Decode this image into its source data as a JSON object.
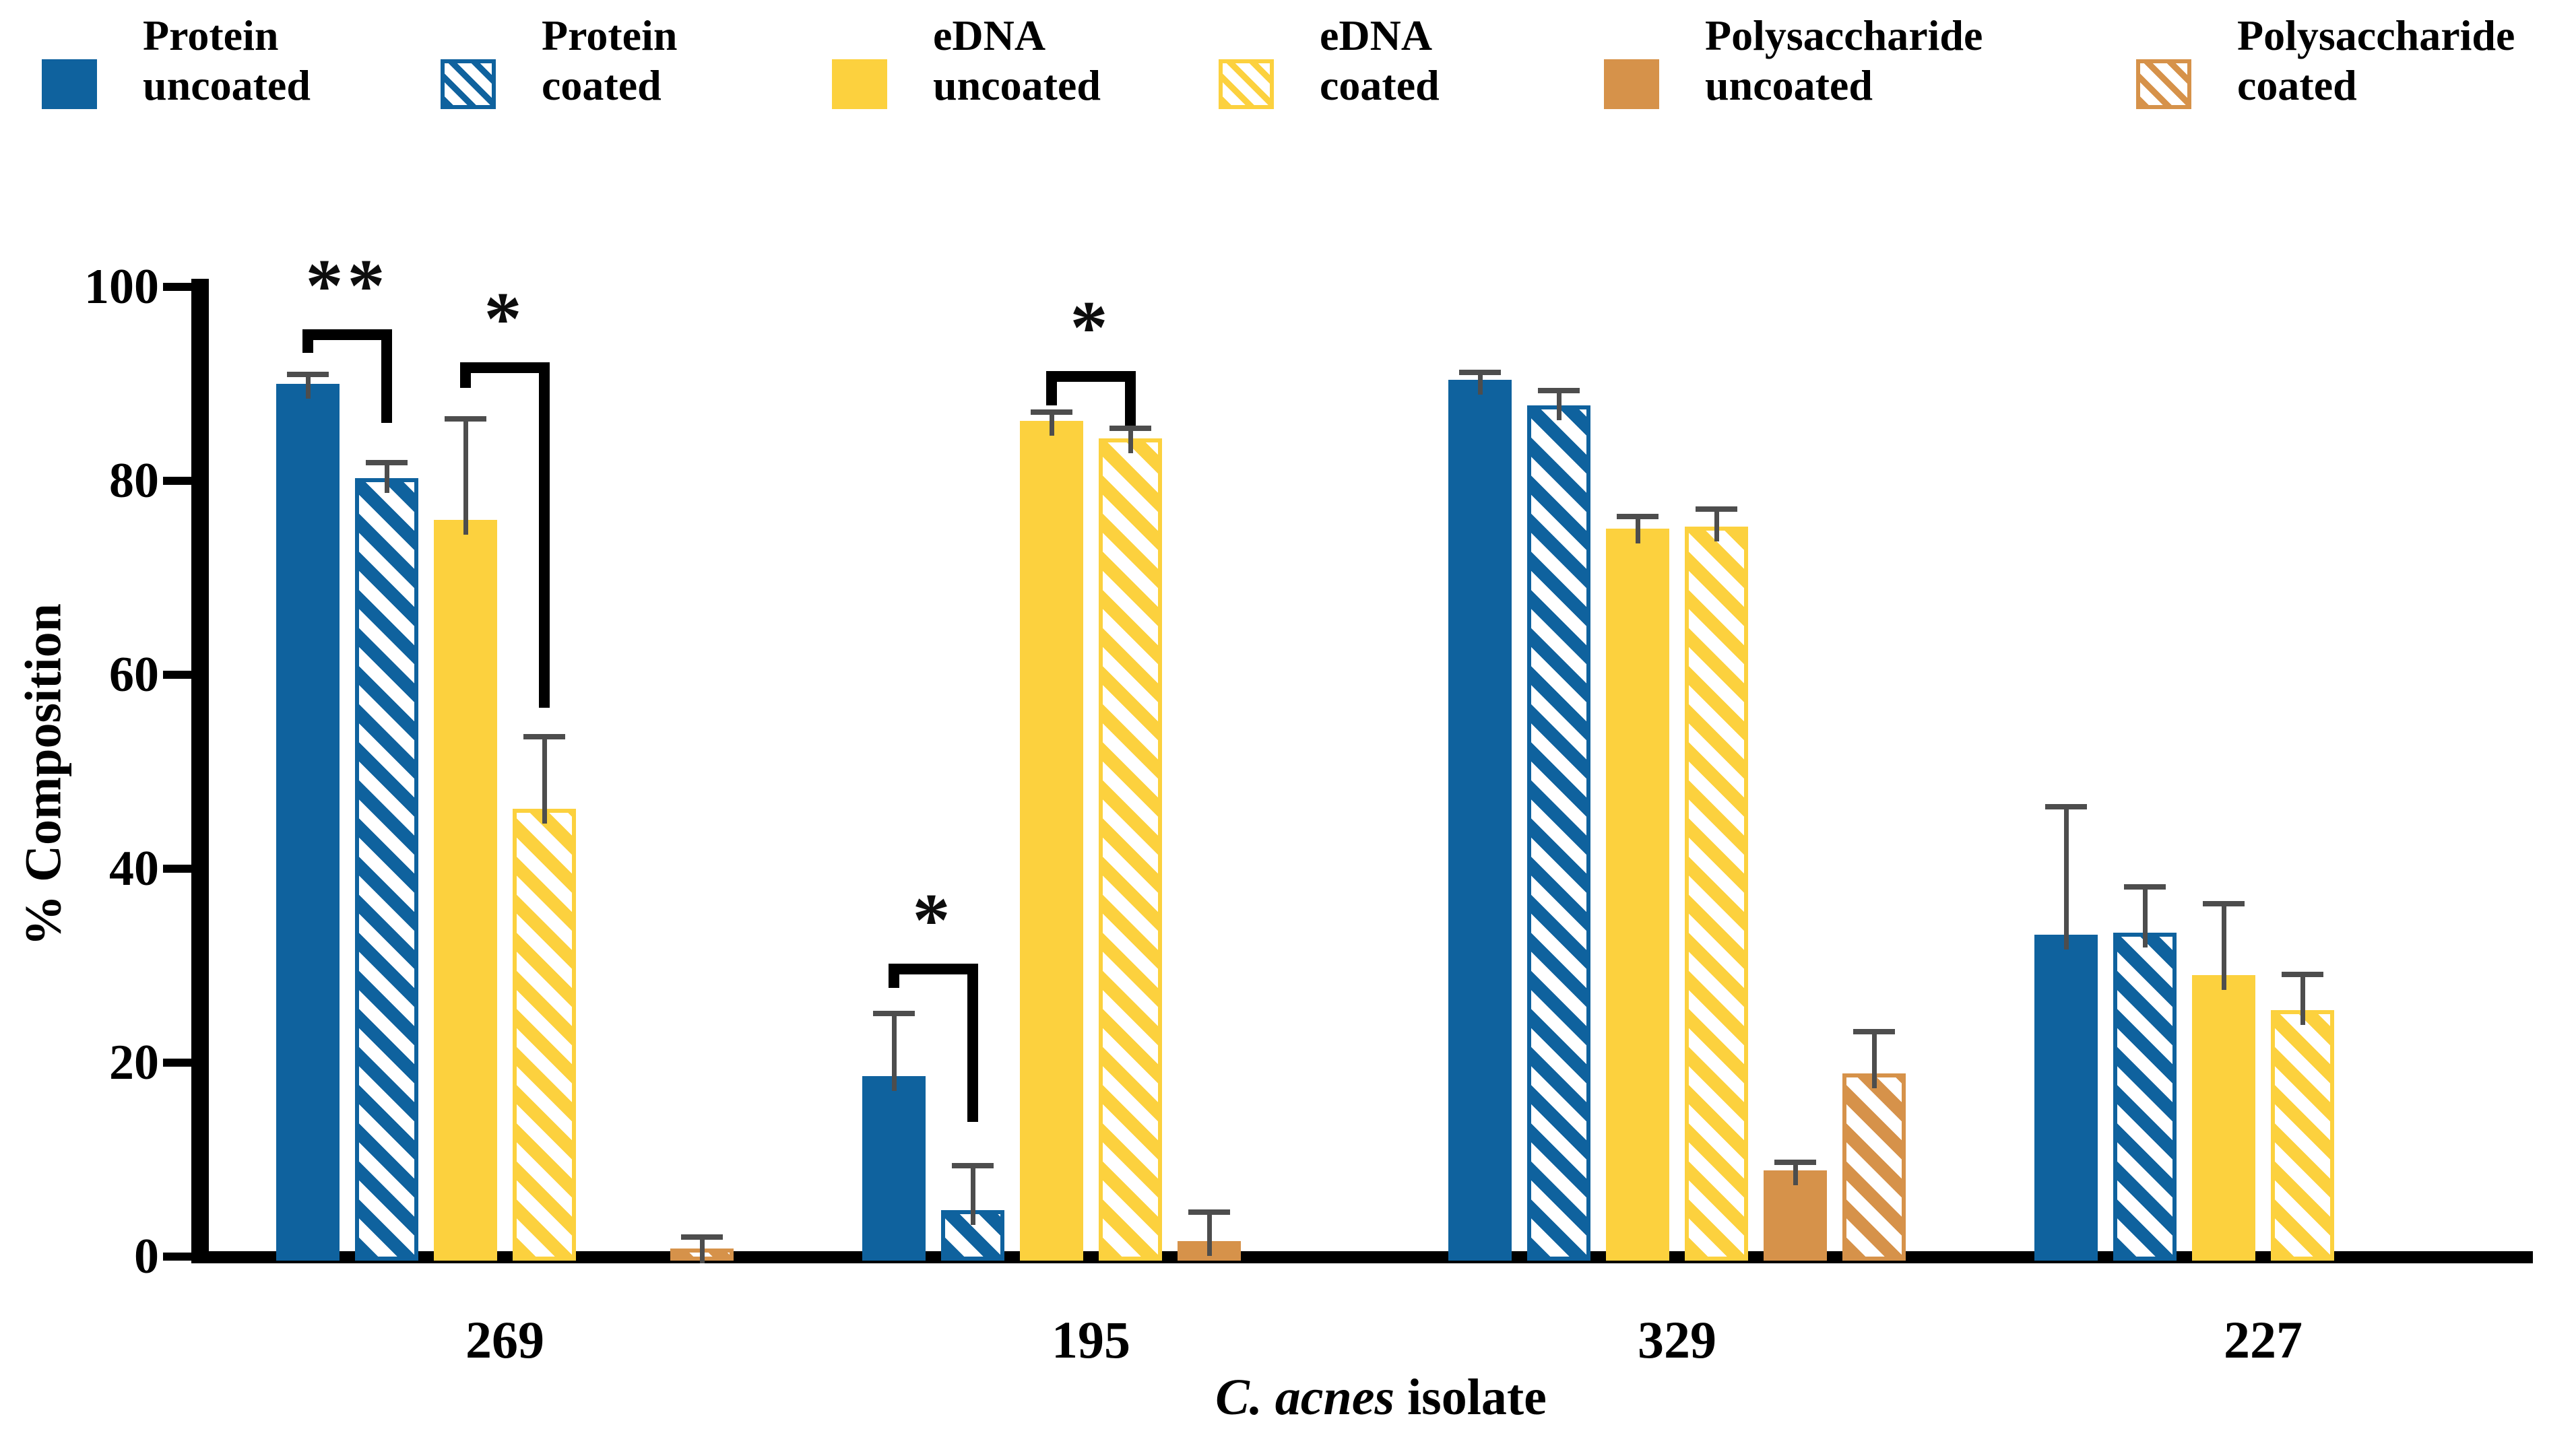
{
  "figure": {
    "background": "#ffffff"
  },
  "legend": {
    "items": [
      {
        "line1": "Protein",
        "line2": "uncoated",
        "color": "#0f629e",
        "hatched": false
      },
      {
        "line1": "Protein",
        "line2": "coated",
        "color": "#0f629e",
        "hatched": true
      },
      {
        "line1": "eDNA",
        "line2": "uncoated",
        "color": "#fcd13e",
        "hatched": false
      },
      {
        "line1": "eDNA",
        "line2": "coated",
        "color": "#fcd13e",
        "hatched": true
      },
      {
        "line1": "Polysaccharide",
        "line2": "uncoated",
        "color": "#d6924a",
        "hatched": false
      },
      {
        "line1": "Polysaccharide",
        "line2": "coated",
        "color": "#d6924a",
        "hatched": true
      }
    ]
  },
  "chart_data": {
    "type": "bar",
    "title": "",
    "xlabel_italic": "C. acnes",
    "xlabel_rest": " isolate",
    "ylabel": "% Composition",
    "ylim": [
      0,
      100
    ],
    "yticks": [
      0,
      20,
      40,
      60,
      80,
      100
    ],
    "grid": false,
    "legend_position": "top",
    "categories": [
      "269",
      "195",
      "329",
      "227"
    ],
    "series": [
      {
        "name": "Protein uncoated",
        "color": "#0f629e",
        "hatched": false,
        "values": [
          90.0,
          18.6,
          90.4,
          33.2
        ],
        "errors": [
          1.0,
          6.5,
          0.8,
          13.2
        ]
      },
      {
        "name": "Protein coated",
        "color": "#0f629e",
        "hatched": true,
        "values": [
          80.3,
          4.8,
          87.8,
          33.4
        ],
        "errors": [
          1.6,
          4.6,
          1.5,
          4.7
        ]
      },
      {
        "name": "eDNA uncoated",
        "color": "#fcd13e",
        "hatched": false,
        "values": [
          76.0,
          86.2,
          75.1,
          29.0
        ],
        "errors": [
          10.4,
          0.9,
          1.2,
          7.4
        ]
      },
      {
        "name": "eDNA coated",
        "color": "#fcd13e",
        "hatched": true,
        "values": [
          46.2,
          84.4,
          75.3,
          25.4
        ],
        "errors": [
          7.4,
          1.0,
          1.8,
          3.7
        ]
      },
      {
        "name": "Polysaccharide uncoated",
        "color": "#d6924a",
        "hatched": false,
        "values": [
          0,
          1.6,
          8.9,
          0
        ],
        "errors": [
          0,
          3.0,
          0.8,
          0
        ]
      },
      {
        "name": "Polysaccharide coated",
        "color": "#d6924a",
        "hatched": true,
        "values": [
          0.8,
          0,
          18.9,
          0
        ],
        "errors": [
          1.2,
          0,
          4.3,
          0
        ]
      }
    ],
    "error_color": "#4d4d4d",
    "significance": [
      {
        "group": 0,
        "from": 0,
        "to": 1,
        "label": "**",
        "top": 95.6,
        "left_drop": 93.2,
        "right_drop": 86.0
      },
      {
        "group": 0,
        "from": 2,
        "to": 3,
        "label": "*",
        "top": 92.2,
        "left_drop": 89.6,
        "right_drop": 56.6
      },
      {
        "group": 1,
        "from": 2,
        "to": 3,
        "label": "*",
        "top": 91.3,
        "left_drop": 87.8,
        "right_drop": 85.7
      },
      {
        "group": 1,
        "from": 0,
        "to": 1,
        "label": "*",
        "top": 30.2,
        "left_drop": 27.7,
        "right_drop": 13.9
      }
    ]
  }
}
